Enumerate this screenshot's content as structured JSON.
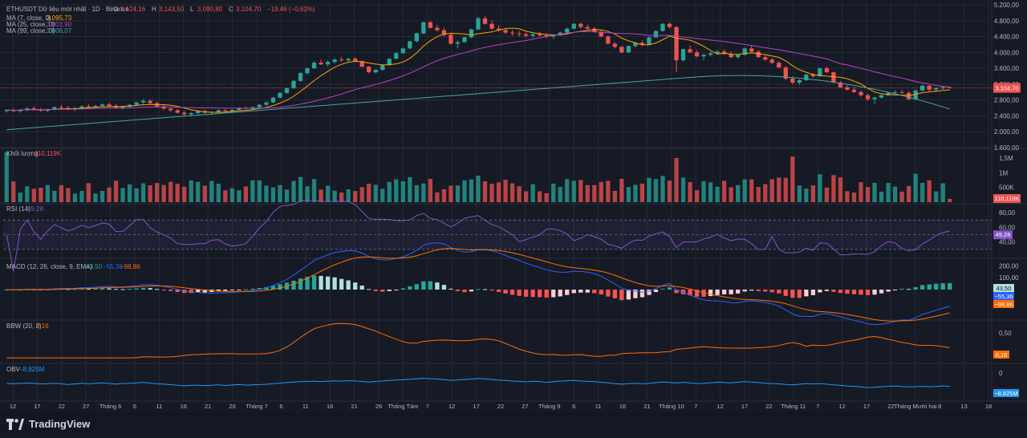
{
  "colors": {
    "bg": "#161a25",
    "grid": "#262a36",
    "up": "#26a69a",
    "down": "#ef5350",
    "ma7": "#f7a600",
    "ma25": "#b742c6",
    "ma99": "#40a69f",
    "rsi": "#7e57c2",
    "macd": "#2962ff",
    "signal": "#ff6d00",
    "bbw": "#ff6d00",
    "obv": "#2196f3",
    "text": "#b2b5be"
  },
  "header": {
    "symbol": "ETHUSDT Dữ liệu mới nhất · 1D · Binance",
    "o_label": "O",
    "o_value": "3.124,16",
    "h_label": "H",
    "h_value": "3.143,50",
    "l_label": "L",
    "l_value": "3.090,80",
    "c_label": "C",
    "c_value": "3.104,70",
    "change": "−19,46 (−0,62%)"
  },
  "legends": {
    "ma7": {
      "label": "MA (7, close, 0)",
      "value": "3.095,73"
    },
    "ma25": {
      "label": "MA (25, close, 0)",
      "value": "3.001,90"
    },
    "ma99": {
      "label": "MA (99, close, 0)",
      "value": "3.806,07"
    },
    "volume": {
      "label": "Khối lượng",
      "value": "110,119K"
    },
    "rsi": {
      "label": "RSI (14)",
      "value": "49,28"
    },
    "macd": {
      "label": "MACD (12, 26, close, 9, EMA)",
      "v1": "43,50",
      "v2": "−55,36",
      "v3": "−98,86"
    },
    "bbw": {
      "label": "BBW (20, 2)",
      "value": "0,16"
    },
    "obv": {
      "label": "OBV",
      "value": "−8,825M"
    }
  },
  "price_axis": [
    "5.200,00",
    "4.800,00",
    "4.400,00",
    "4.000,00",
    "3.600,00",
    "3.200,00",
    "2.800,00",
    "2.400,00",
    "2.000,00",
    "1.600,00"
  ],
  "price_tag": "3.104,70",
  "volume_axis": [
    "1,5M",
    "1M",
    "500K"
  ],
  "volume_tag": "110,119K",
  "rsi_axis": [
    "80,00",
    "60,00",
    "40,00"
  ],
  "rsi_tag": "49,28",
  "macd_axis": [
    "200,00",
    "100,00"
  ],
  "macd_tags": [
    "43,50",
    "−55,36",
    "−98,86"
  ],
  "bbw_axis": [
    "0,50"
  ],
  "bbw_tag": "0,16",
  "obv_axis": [
    "0"
  ],
  "obv_tag": "−8,825M",
  "time_axis": [
    "12",
    "17",
    "22",
    "27",
    "Tháng 6",
    "6",
    "11",
    "16",
    "21",
    "26",
    "Tháng 7",
    "6",
    "11",
    "16",
    "21",
    "26",
    "Tháng Tám",
    "7",
    "12",
    "17",
    "22",
    "27",
    "Tháng 9",
    "6",
    "11",
    "16",
    "21",
    "Tháng 10",
    "7",
    "12",
    "17",
    "22",
    "Tháng 11",
    "7",
    "12",
    "17",
    "22",
    "Tháng Mười hai",
    "8",
    "13",
    "18"
  ],
  "brand": "TradingView",
  "chart_data": {
    "type": "candlestick",
    "price_range": [
      1600,
      5200
    ],
    "candles": [
      [
        2520,
        2560,
        2480,
        2550
      ],
      [
        2550,
        2600,
        2500,
        2520
      ],
      [
        2520,
        2570,
        2480,
        2560
      ],
      [
        2560,
        2620,
        2520,
        2590
      ],
      [
        2590,
        2640,
        2550,
        2560
      ],
      [
        2560,
        2600,
        2500,
        2530
      ],
      [
        2530,
        2580,
        2490,
        2570
      ],
      [
        2570,
        2640,
        2540,
        2620
      ],
      [
        2620,
        2680,
        2580,
        2600
      ],
      [
        2600,
        2650,
        2540,
        2580
      ],
      [
        2580,
        2620,
        2520,
        2600
      ],
      [
        2600,
        2660,
        2570,
        2640
      ],
      [
        2640,
        2700,
        2600,
        2620
      ],
      [
        2620,
        2680,
        2580,
        2650
      ],
      [
        2650,
        2720,
        2620,
        2690
      ],
      [
        2690,
        2740,
        2630,
        2650
      ],
      [
        2650,
        2700,
        2580,
        2600
      ],
      [
        2600,
        2650,
        2560,
        2630
      ],
      [
        2630,
        2700,
        2600,
        2680
      ],
      [
        2680,
        2760,
        2650,
        2740
      ],
      [
        2740,
        2820,
        2700,
        2780
      ],
      [
        2780,
        2820,
        2700,
        2720
      ],
      [
        2720,
        2760,
        2620,
        2640
      ],
      [
        2640,
        2680,
        2560,
        2580
      ],
      [
        2580,
        2620,
        2500,
        2540
      ],
      [
        2540,
        2580,
        2460,
        2480
      ],
      [
        2480,
        2520,
        2400,
        2440
      ],
      [
        2440,
        2500,
        2380,
        2470
      ],
      [
        2470,
        2540,
        2440,
        2520
      ],
      [
        2520,
        2560,
        2460,
        2480
      ],
      [
        2480,
        2520,
        2420,
        2500
      ],
      [
        2500,
        2560,
        2470,
        2540
      ],
      [
        2540,
        2580,
        2500,
        2520
      ],
      [
        2520,
        2560,
        2480,
        2550
      ],
      [
        2550,
        2620,
        2520,
        2600
      ],
      [
        2600,
        2640,
        2560,
        2580
      ],
      [
        2580,
        2640,
        2550,
        2620
      ],
      [
        2620,
        2700,
        2600,
        2680
      ],
      [
        2680,
        2760,
        2650,
        2740
      ],
      [
        2740,
        2880,
        2720,
        2860
      ],
      [
        2860,
        3000,
        2840,
        2980
      ],
      [
        2980,
        3120,
        2960,
        3100
      ],
      [
        3100,
        3300,
        3080,
        3280
      ],
      [
        3280,
        3500,
        3260,
        3480
      ],
      [
        3480,
        3620,
        3440,
        3600
      ],
      [
        3600,
        3780,
        3580,
        3740
      ],
      [
        3740,
        3820,
        3680,
        3700
      ],
      [
        3700,
        3800,
        3640,
        3760
      ],
      [
        3760,
        3860,
        3720,
        3820
      ],
      [
        3820,
        3880,
        3760,
        3800
      ],
      [
        3800,
        3860,
        3760,
        3840
      ],
      [
        3840,
        3880,
        3760,
        3780
      ],
      [
        3780,
        3800,
        3620,
        3640
      ],
      [
        3640,
        3660,
        3480,
        3500
      ],
      [
        3500,
        3580,
        3460,
        3560
      ],
      [
        3560,
        3700,
        3540,
        3680
      ],
      [
        3680,
        3860,
        3660,
        3840
      ],
      [
        3840,
        4000,
        3820,
        3980
      ],
      [
        3980,
        4120,
        3960,
        4100
      ],
      [
        4100,
        4300,
        4080,
        4280
      ],
      [
        4280,
        4500,
        4260,
        4480
      ],
      [
        4480,
        4780,
        4460,
        4760
      ],
      [
        4760,
        4800,
        4600,
        4620
      ],
      [
        4620,
        4700,
        4520,
        4560
      ],
      [
        4560,
        4620,
        4400,
        4440
      ],
      [
        4440,
        4500,
        4200,
        4220
      ],
      [
        4220,
        4300,
        4100,
        4260
      ],
      [
        4260,
        4400,
        4240,
        4380
      ],
      [
        4380,
        4600,
        4360,
        4580
      ],
      [
        4580,
        4900,
        4560,
        4860
      ],
      [
        4860,
        4920,
        4700,
        4720
      ],
      [
        4720,
        4800,
        4560,
        4600
      ],
      [
        4600,
        4680,
        4520,
        4560
      ],
      [
        4560,
        4620,
        4460,
        4500
      ],
      [
        4500,
        4560,
        4420,
        4480
      ],
      [
        4480,
        4540,
        4400,
        4460
      ],
      [
        4460,
        4500,
        4380,
        4420
      ],
      [
        4420,
        4480,
        4360,
        4460
      ],
      [
        4460,
        4520,
        4400,
        4430
      ],
      [
        4430,
        4480,
        4360,
        4400
      ],
      [
        4400,
        4460,
        4340,
        4440
      ],
      [
        4440,
        4520,
        4420,
        4500
      ],
      [
        4500,
        4620,
        4480,
        4600
      ],
      [
        4600,
        4740,
        4580,
        4720
      ],
      [
        4720,
        4760,
        4600,
        4640
      ],
      [
        4640,
        4700,
        4560,
        4600
      ],
      [
        4600,
        4640,
        4500,
        4520
      ],
      [
        4520,
        4560,
        4380,
        4400
      ],
      [
        4400,
        4420,
        4200,
        4220
      ],
      [
        4220,
        4260,
        4100,
        4140
      ],
      [
        4140,
        4160,
        3980,
        4000
      ],
      [
        4000,
        4180,
        3980,
        4160
      ],
      [
        4160,
        4260,
        4120,
        4240
      ],
      [
        4240,
        4300,
        4160,
        4200
      ],
      [
        4200,
        4400,
        4180,
        4380
      ],
      [
        4380,
        4560,
        4360,
        4540
      ],
      [
        4540,
        4740,
        4520,
        4720
      ],
      [
        4720,
        4760,
        4600,
        4640
      ],
      [
        4640,
        4660,
        3500,
        3800
      ],
      [
        3800,
        4100,
        3780,
        4080
      ],
      [
        4080,
        4180,
        3980,
        4000
      ],
      [
        4000,
        4060,
        3880,
        3900
      ],
      [
        3900,
        3960,
        3800,
        3940
      ],
      [
        3940,
        4020,
        3900,
        3980
      ],
      [
        3980,
        4060,
        3940,
        4020
      ],
      [
        4020,
        4080,
        3940,
        3960
      ],
      [
        3960,
        4020,
        3860,
        3880
      ],
      [
        3880,
        3960,
        3840,
        3940
      ],
      [
        3940,
        4120,
        3920,
        4100
      ],
      [
        4100,
        4180,
        4000,
        4020
      ],
      [
        4020,
        4060,
        3860,
        3880
      ],
      [
        3880,
        3920,
        3780,
        3820
      ],
      [
        3820,
        3860,
        3700,
        3740
      ],
      [
        3740,
        3780,
        3600,
        3620
      ],
      [
        3620,
        3660,
        3300,
        3340
      ],
      [
        3340,
        3400,
        3200,
        3240
      ],
      [
        3240,
        3320,
        3180,
        3300
      ],
      [
        3300,
        3460,
        3280,
        3440
      ],
      [
        3440,
        3480,
        3360,
        3400
      ],
      [
        3400,
        3620,
        3380,
        3600
      ],
      [
        3600,
        3640,
        3480,
        3500
      ],
      [
        3500,
        3520,
        3220,
        3240
      ],
      [
        3240,
        3280,
        3100,
        3120
      ],
      [
        3120,
        3180,
        3040,
        3060
      ],
      [
        3060,
        3120,
        2980,
        3000
      ],
      [
        3000,
        3040,
        2880,
        2920
      ],
      [
        2920,
        2960,
        2780,
        2820
      ],
      [
        2820,
        2880,
        2700,
        2860
      ],
      [
        2860,
        2940,
        2840,
        2920
      ],
      [
        2920,
        3000,
        2900,
        2980
      ],
      [
        2980,
        3040,
        2940,
        3000
      ],
      [
        3000,
        3060,
        2960,
        2980
      ],
      [
        2980,
        3020,
        2800,
        2820
      ],
      [
        2820,
        3060,
        2800,
        3040
      ],
      [
        3040,
        3180,
        3020,
        3160
      ],
      [
        3160,
        3180,
        3020,
        3060
      ],
      [
        3060,
        3120,
        3000,
        3100
      ],
      [
        3100,
        3140,
        3060,
        3124
      ],
      [
        3124,
        3144,
        3091,
        3105
      ]
    ],
    "volume_range": [
      0,
      1800000
    ],
    "rsi_range": [
      20,
      90
    ],
    "macd_range": [
      -250,
      250
    ],
    "bbw_range": [
      0,
      0.7
    ],
    "obv_range": [
      -30000000,
      10000000
    ]
  }
}
